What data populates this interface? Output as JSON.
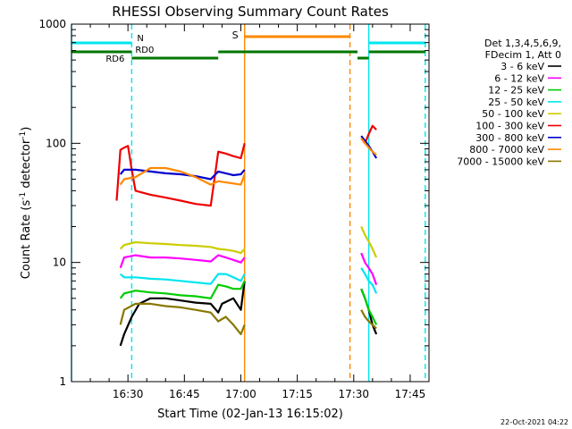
{
  "chart_data": {
    "type": "line",
    "title": "RHESSI Observing Summary Count Rates",
    "xlabel": "Start Time (02-Jan-13 16:15:02)",
    "ylabel_main": "Count Rate (s",
    "ylabel_sup1": "-1",
    "ylabel_mid": " detector",
    "ylabel_sup2": "-1",
    "ylabel_end": ")",
    "yscale": "log",
    "ylim": [
      1,
      1000
    ],
    "xlim": [
      "16:15",
      "17:50"
    ],
    "x_ticks": [
      "16:30",
      "16:45",
      "17:00",
      "17:15",
      "17:30",
      "17:45"
    ],
    "y_ticks": [
      "1",
      "10",
      "100",
      "1000"
    ],
    "footer": "22-Oct-2021 04:22",
    "legend": {
      "header": [
        "Det 1,3,4,5,6,9,",
        "FDecim 1, Att 0"
      ],
      "placement": "right"
    },
    "flags": {
      "night_label": "N",
      "saa_label": "S",
      "rd0_label": "RD0",
      "rd6_label": "RD6"
    },
    "series": [
      {
        "name": "3 - 6 keV",
        "color": "#000000",
        "segments": [
          [
            [
              "16:28",
              2.0
            ],
            [
              "16:29",
              2.5
            ],
            [
              "16:31",
              3.5
            ],
            [
              "16:33",
              4.5
            ],
            [
              "16:36",
              5.0
            ],
            [
              "16:40",
              5.0
            ],
            [
              "16:44",
              4.8
            ],
            [
              "16:48",
              4.6
            ],
            [
              "16:52",
              4.5
            ],
            [
              "16:54",
              3.8
            ],
            [
              "16:55",
              4.5
            ],
            [
              "16:58",
              5.0
            ],
            [
              "17:00",
              4.0
            ],
            [
              "17:01",
              7.0
            ]
          ],
          [
            [
              "17:32",
              6.0
            ],
            [
              "17:33",
              5.0
            ],
            [
              "17:34",
              4.0
            ],
            [
              "17:35",
              3.0
            ],
            [
              "17:36",
              2.5
            ]
          ]
        ]
      },
      {
        "name": "6 - 12 keV",
        "color": "#ff00ff",
        "segments": [
          [
            [
              "16:28",
              9.0
            ],
            [
              "16:29",
              11.0
            ],
            [
              "16:32",
              11.5
            ],
            [
              "16:36",
              11.0
            ],
            [
              "16:40",
              11.0
            ],
            [
              "16:44",
              10.8
            ],
            [
              "16:48",
              10.5
            ],
            [
              "16:52",
              10.2
            ],
            [
              "16:54",
              11.5
            ],
            [
              "16:56",
              11.0
            ],
            [
              "16:58",
              10.5
            ],
            [
              "17:00",
              10.0
            ],
            [
              "17:01",
              11.0
            ]
          ],
          [
            [
              "17:32",
              12.0
            ],
            [
              "17:33",
              10.0
            ],
            [
              "17:34",
              9.0
            ],
            [
              "17:35",
              8.0
            ],
            [
              "17:36",
              6.5
            ]
          ]
        ]
      },
      {
        "name": "12 - 25 keV",
        "color": "#00cc00",
        "segments": [
          [
            [
              "16:28",
              5.0
            ],
            [
              "16:29",
              5.5
            ],
            [
              "16:32",
              5.8
            ],
            [
              "16:36",
              5.6
            ],
            [
              "16:40",
              5.5
            ],
            [
              "16:44",
              5.3
            ],
            [
              "16:48",
              5.2
            ],
            [
              "16:52",
              5.0
            ],
            [
              "16:54",
              6.5
            ],
            [
              "16:56",
              6.3
            ],
            [
              "16:58",
              6.0
            ],
            [
              "17:00",
              6.0
            ],
            [
              "17:01",
              7.0
            ]
          ],
          [
            [
              "17:32",
              6.0
            ],
            [
              "17:33",
              5.0
            ],
            [
              "17:34",
              4.0
            ],
            [
              "17:35",
              3.5
            ],
            [
              "17:36",
              3.0
            ]
          ]
        ]
      },
      {
        "name": "25 - 50 keV",
        "color": "#00e5ee",
        "segments": [
          [
            [
              "16:28",
              8.0
            ],
            [
              "16:29",
              7.5
            ],
            [
              "16:32",
              7.5
            ],
            [
              "16:36",
              7.3
            ],
            [
              "16:40",
              7.2
            ],
            [
              "16:44",
              7.0
            ],
            [
              "16:48",
              6.8
            ],
            [
              "16:52",
              6.6
            ],
            [
              "16:54",
              8.0
            ],
            [
              "16:56",
              8.0
            ],
            [
              "16:58",
              7.5
            ],
            [
              "17:00",
              7.0
            ],
            [
              "17:01",
              8.0
            ]
          ],
          [
            [
              "17:32",
              9.0
            ],
            [
              "17:33",
              8.0
            ],
            [
              "17:34",
              7.0
            ],
            [
              "17:35",
              6.5
            ],
            [
              "17:36",
              5.5
            ]
          ]
        ]
      },
      {
        "name": "50 - 100 keV",
        "color": "#cccc00",
        "segments": [
          [
            [
              "16:28",
              13.0
            ],
            [
              "16:29",
              14.0
            ],
            [
              "16:32",
              14.8
            ],
            [
              "16:36",
              14.5
            ],
            [
              "16:40",
              14.3
            ],
            [
              "16:44",
              14.0
            ],
            [
              "16:48",
              13.8
            ],
            [
              "16:52",
              13.5
            ],
            [
              "16:54",
              13.0
            ],
            [
              "16:56",
              12.8
            ],
            [
              "16:58",
              12.5
            ],
            [
              "17:00",
              12.0
            ],
            [
              "17:01",
              13.0
            ]
          ],
          [
            [
              "17:32",
              20.0
            ],
            [
              "17:33",
              17.0
            ],
            [
              "17:34",
              15.0
            ],
            [
              "17:35",
              13.0
            ],
            [
              "17:36",
              11.0
            ]
          ]
        ]
      },
      {
        "name": "100 - 300 keV",
        "color": "#ee0000",
        "segments": [
          [
            [
              "16:27",
              33.0
            ],
            [
              "16:28",
              88.0
            ],
            [
              "16:29",
              92.0
            ],
            [
              "16:30",
              95.0
            ],
            [
              "16:31",
              60.0
            ],
            [
              "16:32",
              40.0
            ],
            [
              "16:36",
              37.0
            ],
            [
              "16:40",
              35.0
            ],
            [
              "16:44",
              33.0
            ],
            [
              "16:48",
              31.0
            ],
            [
              "16:52",
              30.0
            ],
            [
              "16:54",
              85.0
            ],
            [
              "16:56",
              82.0
            ],
            [
              "16:58",
              78.0
            ],
            [
              "17:00",
              75.0
            ],
            [
              "17:01",
              100.0
            ]
          ],
          [
            [
              "17:32",
              110.0
            ],
            [
              "17:33",
              100.0
            ],
            [
              "17:34",
              120.0
            ],
            [
              "17:35",
              140.0
            ],
            [
              "17:36",
              130.0
            ]
          ]
        ]
      },
      {
        "name": "300 - 800 keV",
        "color": "#0000cc",
        "segments": [
          [
            [
              "16:28",
              55.0
            ],
            [
              "16:29",
              60.0
            ],
            [
              "16:32",
              60.0
            ],
            [
              "16:36",
              58.0
            ],
            [
              "16:40",
              56.0
            ],
            [
              "16:44",
              55.0
            ],
            [
              "16:48",
              53.0
            ],
            [
              "16:52",
              50.0
            ],
            [
              "16:54",
              58.0
            ],
            [
              "16:56",
              56.0
            ],
            [
              "16:58",
              54.0
            ],
            [
              "17:00",
              55.0
            ],
            [
              "17:01",
              60.0
            ]
          ],
          [
            [
              "17:32",
              115.0
            ],
            [
              "17:33",
              105.0
            ],
            [
              "17:34",
              95.0
            ],
            [
              "17:35",
              85.0
            ],
            [
              "17:36",
              75.0
            ]
          ]
        ]
      },
      {
        "name": "800 - 7000 keV",
        "color": "#ff8800",
        "segments": [
          [
            [
              "16:28",
              45.0
            ],
            [
              "16:29",
              50.0
            ],
            [
              "16:32",
              52.0
            ],
            [
              "16:36",
              62.0
            ],
            [
              "16:40",
              62.0
            ],
            [
              "16:44",
              58.0
            ],
            [
              "16:48",
              52.0
            ],
            [
              "16:52",
              45.0
            ],
            [
              "16:54",
              48.0
            ],
            [
              "16:56",
              47.0
            ],
            [
              "16:58",
              46.0
            ],
            [
              "17:00",
              45.0
            ],
            [
              "17:01",
              55.0
            ]
          ],
          [
            [
              "17:32",
              110.0
            ],
            [
              "17:33",
              100.0
            ],
            [
              "17:34",
              92.0
            ],
            [
              "17:35",
              85.0
            ],
            [
              "17:36",
              80.0
            ]
          ]
        ]
      },
      {
        "name": "7000 - 15000 keV",
        "color": "#887700",
        "segments": [
          [
            [
              "16:28",
              3.0
            ],
            [
              "16:29",
              4.0
            ],
            [
              "16:32",
              4.5
            ],
            [
              "16:36",
              4.5
            ],
            [
              "16:40",
              4.3
            ],
            [
              "16:44",
              4.2
            ],
            [
              "16:48",
              4.0
            ],
            [
              "16:52",
              3.8
            ],
            [
              "16:54",
              3.2
            ],
            [
              "16:56",
              3.5
            ],
            [
              "16:58",
              3.0
            ],
            [
              "17:00",
              2.5
            ],
            [
              "17:01",
              3.0
            ]
          ],
          [
            [
              "17:32",
              4.0
            ],
            [
              "17:33",
              3.5
            ],
            [
              "17:34",
              3.2
            ],
            [
              "17:35",
              3.0
            ],
            [
              "17:36",
              2.8
            ]
          ]
        ]
      }
    ],
    "night_segments": [
      [
        "16:15",
        "16:31"
      ],
      [
        "17:34",
        "17:49"
      ]
    ],
    "night_boundaries": [
      "16:15",
      "16:31",
      "17:34",
      "17:49"
    ],
    "saa_segments": [
      [
        "17:01",
        "17:29"
      ]
    ],
    "saa_boundaries": [
      "17:01",
      "17:29"
    ],
    "decim_segments": [
      [
        "16:15",
        "16:31"
      ],
      [
        "16:54",
        "17:31"
      ],
      [
        "17:34",
        "17:49"
      ]
    ],
    "decim_low_segments": [
      [
        "16:31",
        "16:54"
      ],
      [
        "17:31",
        "17:34"
      ]
    ]
  }
}
